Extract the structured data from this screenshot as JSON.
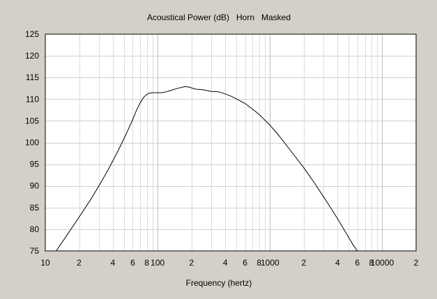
{
  "chart_data": {
    "type": "line",
    "title": "Acoustical Power (dB)   Horn   Masked",
    "xlabel": "Frequency (hertz)",
    "ylabel": "",
    "x_scale": "log",
    "xlim": [
      10,
      20000
    ],
    "ylim": [
      75,
      125
    ],
    "grid": true,
    "y_ticks": [
      75,
      80,
      85,
      90,
      95,
      100,
      105,
      110,
      115,
      120,
      125
    ],
    "x_ticks": [
      {
        "value": 10,
        "label": "10"
      },
      {
        "value": 20,
        "label": "2"
      },
      {
        "value": 40,
        "label": "4"
      },
      {
        "value": 60,
        "label": "6"
      },
      {
        "value": 80,
        "label": "8"
      },
      {
        "value": 100,
        "label": "100"
      },
      {
        "value": 200,
        "label": "2"
      },
      {
        "value": 400,
        "label": "4"
      },
      {
        "value": 600,
        "label": "6"
      },
      {
        "value": 800,
        "label": "8"
      },
      {
        "value": 1000,
        "label": "1000"
      },
      {
        "value": 2000,
        "label": "2"
      },
      {
        "value": 4000,
        "label": "4"
      },
      {
        "value": 6000,
        "label": "6"
      },
      {
        "value": 8000,
        "label": "8"
      },
      {
        "value": 10000,
        "label": "10000"
      },
      {
        "value": 20000,
        "label": "2"
      }
    ],
    "series": [
      {
        "color": "#000000",
        "x": [
          12.5,
          15,
          20,
          25,
          30,
          35,
          40,
          45,
          50,
          55,
          60,
          65,
          70,
          75,
          80,
          85,
          90,
          100,
          110,
          120,
          130,
          150,
          175,
          190,
          200,
          220,
          250,
          300,
          350,
          400,
          450,
          500,
          600,
          700,
          800,
          900,
          1000,
          1200,
          1500,
          2000,
          2500,
          3000,
          3500,
          4000,
          4500,
          5000,
          5500,
          6000
        ],
        "y": [
          75.0,
          78.0,
          82.8,
          86.6,
          90.0,
          93.0,
          95.8,
          98.4,
          100.8,
          103.1,
          105.3,
          107.5,
          109.2,
          110.4,
          111.1,
          111.4,
          111.5,
          111.5,
          111.5,
          111.7,
          112.0,
          112.5,
          112.9,
          112.8,
          112.6,
          112.3,
          112.2,
          111.8,
          111.7,
          111.2,
          110.7,
          110.1,
          109.0,
          107.7,
          106.5,
          105.2,
          104.0,
          101.6,
          98.4,
          94.2,
          90.6,
          87.5,
          84.8,
          82.4,
          80.2,
          78.2,
          76.4,
          74.9
        ]
      }
    ]
  }
}
